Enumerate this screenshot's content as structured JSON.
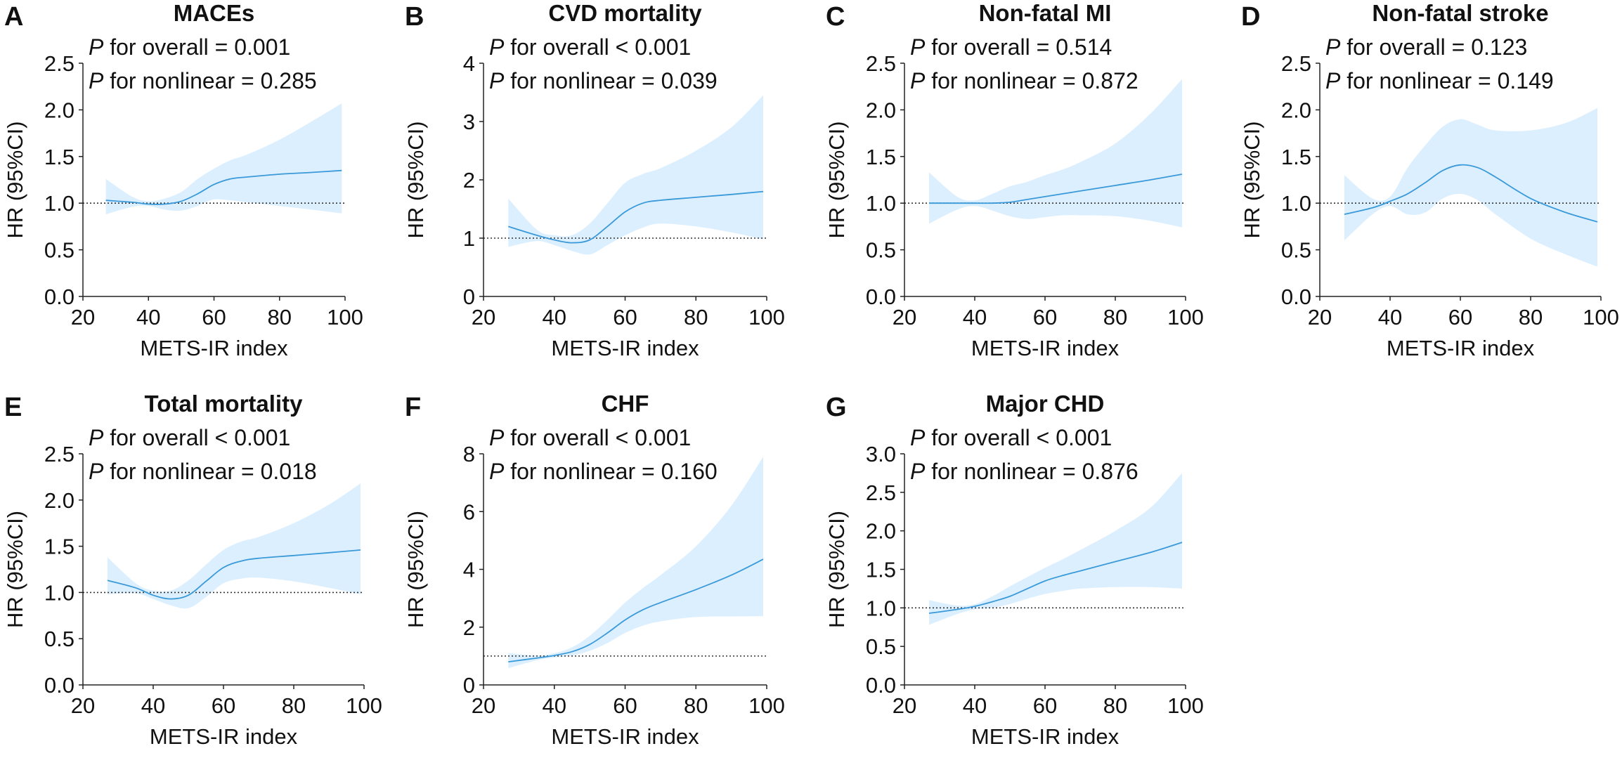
{
  "figure": {
    "panels": [
      {
        "letter": "A",
        "title": "MACEs",
        "p_overall_label": "for overall = 0.001",
        "p_nonlinear_label": "for nonlinear = 0.285"
      },
      {
        "letter": "B",
        "title": "CVD mortality",
        "p_overall_label": "for overall < 0.001",
        "p_nonlinear_label": "for nonlinear = 0.039"
      },
      {
        "letter": "C",
        "title": "Non-fatal MI",
        "p_overall_label": "for overall = 0.514",
        "p_nonlinear_label": "for nonlinear = 0.872"
      },
      {
        "letter": "D",
        "title": "Non-fatal stroke",
        "p_overall_label": "for overall = 0.123",
        "p_nonlinear_label": "for nonlinear = 0.149"
      },
      {
        "letter": "E",
        "title": "Total mortality",
        "p_overall_label": "for overall < 0.001",
        "p_nonlinear_label": "for nonlinear = 0.018"
      },
      {
        "letter": "F",
        "title": "CHF",
        "p_overall_label": "for overall < 0.001",
        "p_nonlinear_label": "for nonlinear = 0.160"
      },
      {
        "letter": "G",
        "title": "Major CHD",
        "p_overall_label": "for overall < 0.001",
        "p_nonlinear_label": "for nonlinear = 0.876"
      }
    ]
  },
  "colors": {
    "line": "#3a9ad9",
    "band": "#dcefff",
    "reference": "#333333",
    "axis": "#222222",
    "text": "#111111"
  },
  "chart_data": [
    {
      "type": "line",
      "title": "MACEs",
      "xlabel": "METS-IR index",
      "ylabel": "HR (95%CI)",
      "xlim": [
        20,
        100
      ],
      "ylim": [
        0,
        2.5
      ],
      "xticks": [
        20,
        40,
        60,
        80,
        100
      ],
      "yticks": [
        0.0,
        0.5,
        1.0,
        1.5,
        2.0,
        2.5
      ],
      "ytick_decimals": 1,
      "reference_line": 1.0,
      "x": [
        27,
        35,
        40,
        45,
        50,
        55,
        60,
        65,
        70,
        80,
        90,
        99
      ],
      "hr": [
        1.03,
        1.01,
        0.99,
        0.99,
        1.02,
        1.1,
        1.2,
        1.26,
        1.28,
        1.31,
        1.33,
        1.35
      ],
      "lower": [
        0.88,
        0.96,
        0.97,
        0.93,
        0.92,
        0.97,
        1.04,
        1.03,
        1.01,
        0.97,
        0.93,
        0.89
      ],
      "upper": [
        1.26,
        1.07,
        1.02,
        1.05,
        1.12,
        1.26,
        1.37,
        1.46,
        1.52,
        1.68,
        1.88,
        2.07
      ]
    },
    {
      "type": "line",
      "title": "CVD mortality",
      "xlabel": "METS-IR index",
      "ylabel": "HR (95%CI)",
      "xlim": [
        20,
        100
      ],
      "ylim": [
        0,
        4
      ],
      "xticks": [
        20,
        40,
        60,
        80,
        100
      ],
      "yticks": [
        0,
        1,
        2,
        3,
        4
      ],
      "ytick_decimals": 0,
      "reference_line": 1.0,
      "x": [
        27,
        35,
        40,
        45,
        50,
        55,
        60,
        65,
        70,
        80,
        90,
        99
      ],
      "hr": [
        1.2,
        1.05,
        0.97,
        0.92,
        0.97,
        1.2,
        1.45,
        1.6,
        1.65,
        1.7,
        1.75,
        1.8
      ],
      "lower": [
        0.85,
        0.95,
        0.88,
        0.78,
        0.72,
        0.88,
        1.05,
        1.18,
        1.25,
        1.2,
        1.1,
        0.98
      ],
      "upper": [
        1.68,
        1.15,
        1.05,
        1.05,
        1.25,
        1.6,
        1.95,
        2.1,
        2.2,
        2.5,
        2.9,
        3.45
      ]
    },
    {
      "type": "line",
      "title": "Non-fatal MI",
      "xlabel": "METS-IR index",
      "ylabel": "HR (95%CI)",
      "xlim": [
        20,
        100
      ],
      "ylim": [
        0,
        2.5
      ],
      "xticks": [
        20,
        40,
        60,
        80,
        100
      ],
      "yticks": [
        0.0,
        0.5,
        1.0,
        1.5,
        2.0,
        2.5
      ],
      "ytick_decimals": 1,
      "reference_line": 1.0,
      "x": [
        27,
        35,
        40,
        45,
        50,
        55,
        60,
        65,
        70,
        80,
        90,
        99
      ],
      "hr": [
        1.0,
        1.0,
        1.0,
        1.0,
        1.01,
        1.04,
        1.07,
        1.1,
        1.13,
        1.19,
        1.25,
        1.31
      ],
      "lower": [
        0.78,
        0.93,
        0.97,
        0.92,
        0.86,
        0.83,
        0.85,
        0.87,
        0.87,
        0.86,
        0.81,
        0.74
      ],
      "upper": [
        1.33,
        1.07,
        1.03,
        1.1,
        1.18,
        1.23,
        1.3,
        1.36,
        1.44,
        1.64,
        1.96,
        2.33
      ]
    },
    {
      "type": "line",
      "title": "Non-fatal stroke",
      "xlabel": "METS-IR index",
      "ylabel": "HR (95%CI)",
      "xlim": [
        20,
        100
      ],
      "ylim": [
        0,
        2.5
      ],
      "xticks": [
        20,
        40,
        60,
        80,
        100
      ],
      "yticks": [
        0.0,
        0.5,
        1.0,
        1.5,
        2.0,
        2.5
      ],
      "ytick_decimals": 1,
      "reference_line": 1.0,
      "x": [
        27,
        35,
        40,
        45,
        50,
        55,
        60,
        65,
        70,
        80,
        90,
        99
      ],
      "hr": [
        0.88,
        0.95,
        1.02,
        1.1,
        1.22,
        1.35,
        1.41,
        1.38,
        1.28,
        1.05,
        0.9,
        0.8
      ],
      "lower": [
        0.6,
        0.88,
        0.97,
        0.88,
        0.9,
        1.05,
        1.1,
        1.03,
        0.88,
        0.62,
        0.45,
        0.32
      ],
      "upper": [
        1.3,
        1.05,
        1.07,
        1.38,
        1.62,
        1.82,
        1.9,
        1.84,
        1.78,
        1.78,
        1.86,
        2.02
      ]
    },
    {
      "type": "line",
      "title": "Total mortality",
      "xlabel": "METS-IR index",
      "ylabel": "HR (95%CI)",
      "xlim": [
        20,
        100
      ],
      "ylim": [
        0,
        2.5
      ],
      "xticks": [
        20,
        40,
        60,
        80,
        100
      ],
      "yticks": [
        0.0,
        0.5,
        1.0,
        1.5,
        2.0,
        2.5
      ],
      "ytick_decimals": 1,
      "reference_line": 1.0,
      "x": [
        27,
        35,
        40,
        45,
        50,
        55,
        60,
        65,
        70,
        80,
        90,
        99
      ],
      "hr": [
        1.13,
        1.05,
        0.97,
        0.93,
        0.97,
        1.12,
        1.27,
        1.34,
        1.37,
        1.4,
        1.43,
        1.46
      ],
      "lower": [
        0.98,
        0.99,
        0.93,
        0.86,
        0.83,
        0.95,
        1.1,
        1.15,
        1.16,
        1.12,
        1.05,
        0.98
      ],
      "upper": [
        1.38,
        1.1,
        1.02,
        1.02,
        1.13,
        1.3,
        1.46,
        1.55,
        1.6,
        1.75,
        1.95,
        2.18
      ]
    },
    {
      "type": "line",
      "title": "CHF",
      "xlabel": "METS-IR index",
      "ylabel": "HR (95%CI)",
      "xlim": [
        20,
        100
      ],
      "ylim": [
        0,
        8
      ],
      "xticks": [
        20,
        40,
        60,
        80,
        100
      ],
      "yticks": [
        0,
        2,
        4,
        6,
        8
      ],
      "ytick_decimals": 0,
      "reference_line": 1.0,
      "x": [
        27,
        35,
        40,
        45,
        50,
        55,
        60,
        65,
        70,
        80,
        90,
        99
      ],
      "hr": [
        0.8,
        0.93,
        1.02,
        1.15,
        1.4,
        1.8,
        2.25,
        2.6,
        2.85,
        3.3,
        3.8,
        4.35
      ],
      "lower": [
        0.58,
        0.85,
        0.95,
        1.02,
        1.18,
        1.45,
        1.8,
        2.05,
        2.2,
        2.35,
        2.37,
        2.38
      ],
      "upper": [
        1.1,
        1.02,
        1.1,
        1.3,
        1.7,
        2.25,
        2.85,
        3.35,
        3.8,
        4.8,
        6.2,
        7.9
      ]
    },
    {
      "type": "line",
      "title": "Major CHD",
      "xlabel": "METS-IR index",
      "ylabel": "HR (95%CI)",
      "xlim": [
        20,
        100
      ],
      "ylim": [
        0,
        3.0
      ],
      "xticks": [
        20,
        40,
        60,
        80,
        100
      ],
      "yticks": [
        0.0,
        0.5,
        1.0,
        1.5,
        2.0,
        2.5,
        3.0
      ],
      "ytick_decimals": 1,
      "reference_line": 1.0,
      "x": [
        27,
        35,
        40,
        45,
        50,
        55,
        60,
        65,
        70,
        80,
        90,
        99
      ],
      "hr": [
        0.93,
        0.98,
        1.02,
        1.08,
        1.15,
        1.25,
        1.35,
        1.42,
        1.48,
        1.6,
        1.72,
        1.85
      ],
      "lower": [
        0.78,
        0.92,
        0.98,
        1.0,
        1.05,
        1.12,
        1.18,
        1.22,
        1.25,
        1.27,
        1.27,
        1.25
      ],
      "upper": [
        1.1,
        1.03,
        1.05,
        1.15,
        1.28,
        1.4,
        1.52,
        1.63,
        1.75,
        2.0,
        2.3,
        2.75
      ]
    }
  ]
}
